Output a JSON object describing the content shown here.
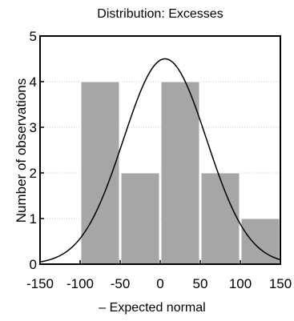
{
  "chart_data": {
    "type": "bar",
    "title": "Distribution: Excesses",
    "xlabel": "",
    "ylabel": "Number of observations",
    "legend": "– Expected normal",
    "xlim": [
      -150,
      150
    ],
    "ylim": [
      0,
      5
    ],
    "xticks": [
      "-150",
      "-100",
      "-50",
      "0",
      "50",
      "100",
      "150"
    ],
    "yticks": [
      "0",
      "1",
      "2",
      "3",
      "4",
      "5"
    ],
    "bins": [
      {
        "from": -100,
        "to": -50,
        "count": 4
      },
      {
        "from": -50,
        "to": 0,
        "count": 2
      },
      {
        "from": 0,
        "to": 50,
        "count": 4
      },
      {
        "from": 50,
        "to": 100,
        "count": 2
      },
      {
        "from": 100,
        "to": 150,
        "count": 1
      }
    ],
    "normal_curve": {
      "mean": 6,
      "sd": 52,
      "peak": 4.5
    },
    "grid": true,
    "bar_color": "#a6a6a6",
    "curve_color": "#000000"
  }
}
